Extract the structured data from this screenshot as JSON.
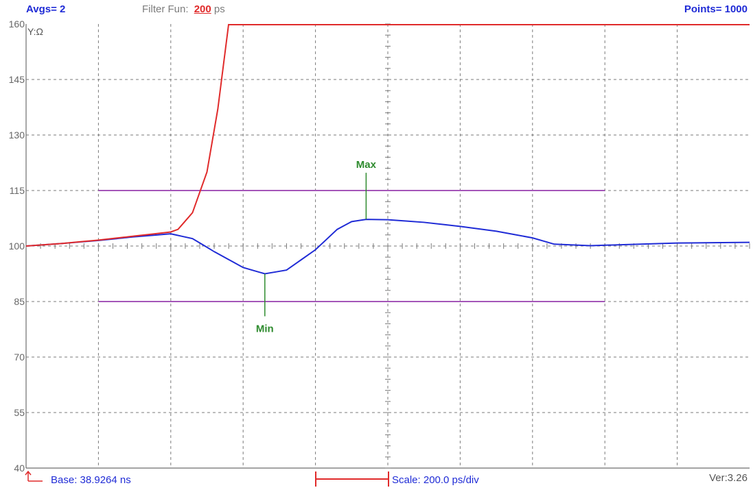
{
  "header": {
    "avgs": "Avgs= 2",
    "filter_label": "Filter Fun:",
    "filter_value": "200",
    "filter_unit": "ps",
    "points": "Points= 1000"
  },
  "footer": {
    "base": "Base: 38.9264 ns",
    "scale": "Scale: 200.0 ps/div",
    "version": "Ver:3.26"
  },
  "plot": {
    "y_unit_label": "Y:Ω",
    "y_ticks": [
      "160",
      "145",
      "130",
      "115",
      "100",
      "85",
      "70",
      "55",
      "40"
    ],
    "markers": {
      "max": "Max",
      "min": "Min"
    }
  },
  "colors": {
    "grid": "#7a7a7a",
    "blue_trace": "#1f2bd6",
    "red_trace": "#e02a2a",
    "limit_lines": "#a455b8",
    "marker": "#2e8b2e"
  },
  "chart_data": {
    "type": "line",
    "y_range": [
      40,
      160
    ],
    "x_divisions": 10,
    "y_divisions": 8,
    "limits": [
      115,
      85
    ],
    "series": [
      {
        "color": "blue",
        "x": [
          0,
          0.5,
          1,
          1.5,
          2,
          2.3,
          2.6,
          3.0,
          3.3,
          3.6,
          4.0,
          4.3,
          4.5,
          4.7,
          5.0,
          5.5,
          6.0,
          6.5,
          7.0,
          7.3,
          7.8,
          8.3,
          9.0,
          10
        ],
        "y": [
          100,
          100.7,
          101.5,
          102.5,
          103.3,
          102.0,
          98.5,
          94.2,
          92.5,
          93.5,
          99.0,
          104.5,
          106.6,
          107.2,
          107.1,
          106.4,
          105.3,
          104.0,
          102.2,
          100.5,
          100.1,
          100.4,
          100.8,
          101.0
        ]
      },
      {
        "color": "red",
        "x": [
          0,
          0.5,
          1,
          1.5,
          2,
          2.1,
          2.3,
          2.5,
          2.65,
          2.8
        ],
        "y": [
          100,
          100.7,
          101.6,
          102.7,
          103.8,
          104.5,
          109,
          120,
          137,
          160
        ]
      }
    ],
    "annotations": [
      {
        "label": "Max",
        "x": 4.7,
        "y": 107.2
      },
      {
        "label": "Min",
        "x": 3.3,
        "y": 92.5
      }
    ]
  }
}
